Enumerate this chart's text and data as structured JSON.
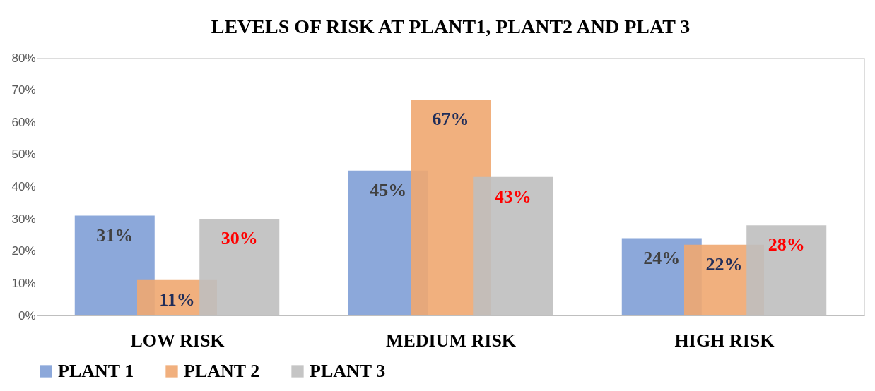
{
  "chart_data": {
    "type": "bar",
    "title": "LEVELS OF RISK AT PLANT1, PLANT2 AND PLAT 3",
    "categories": [
      "LOW RISK",
      "MEDIUM RISK",
      "HIGH RISK"
    ],
    "series": [
      {
        "name": "PLANT 1",
        "color": "#7f9fd6",
        "values": [
          31,
          45,
          24
        ]
      },
      {
        "name": "PLANT 2",
        "color": "#f0a770",
        "values": [
          11,
          67,
          22
        ]
      },
      {
        "name": "PLANT 3",
        "color": "#bfbfbf",
        "values": [
          30,
          43,
          28
        ]
      }
    ],
    "ylim": [
      0,
      80
    ],
    "yticks": [
      {
        "value": 0,
        "label": "0%"
      },
      {
        "value": 10,
        "label": "10%"
      },
      {
        "value": 20,
        "label": "20%"
      },
      {
        "value": 30,
        "label": "30%"
      },
      {
        "value": 40,
        "label": "40%"
      },
      {
        "value": 50,
        "label": "50%"
      },
      {
        "value": 60,
        "label": "60%"
      },
      {
        "value": 70,
        "label": "70%"
      },
      {
        "value": 80,
        "label": "80%"
      }
    ],
    "value_labels": [
      [
        "31%",
        "45%",
        "24%"
      ],
      [
        "11%",
        "67%",
        "22%"
      ],
      [
        "30%",
        "43%",
        "28%"
      ]
    ],
    "grid": false,
    "legend": "bottom"
  }
}
